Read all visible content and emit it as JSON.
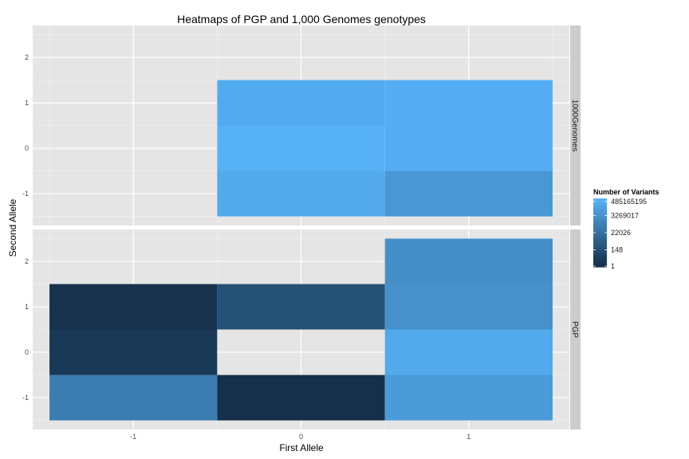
{
  "chart_data": {
    "type": "heatmap",
    "title": "Heatmaps of PGP and 1,000 Genomes genotypes",
    "xlabel": "First Allele",
    "ylabel": "Second Allele",
    "x_ticks": [
      -1,
      0,
      1
    ],
    "y_ticks": [
      -1,
      0,
      1,
      2
    ],
    "xlim": [
      -1.5,
      1.5
    ],
    "ylim": [
      -1.5,
      2.5
    ],
    "grid": true,
    "legend": {
      "title": "Number of Variants",
      "position": "right",
      "scale": "log",
      "breaks": [
        {
          "label": "485165195",
          "value": 485165195
        },
        {
          "label": "3269017",
          "value": 3269017
        },
        {
          "label": "22026",
          "value": 22026
        },
        {
          "label": "148",
          "value": 148
        },
        {
          "label": "1",
          "value": 1
        }
      ],
      "color_low": "#132B43",
      "color_high": "#56B1F7"
    },
    "panels": [
      {
        "name": "1000Genomes",
        "cells": [
          {
            "x": 0,
            "y": 1,
            "value": 200000000
          },
          {
            "x": 1,
            "y": 1,
            "value": 320000000
          },
          {
            "x": 0,
            "y": 0,
            "value": 485165195
          },
          {
            "x": 1,
            "y": 0,
            "value": 250000000
          },
          {
            "x": 0,
            "y": -1,
            "value": 150000000
          },
          {
            "x": 1,
            "y": -1,
            "value": 10000000
          }
        ]
      },
      {
        "name": "PGP",
        "cells": [
          {
            "x": 1,
            "y": 2,
            "value": 3000000
          },
          {
            "x": -1,
            "y": 1,
            "value": 3
          },
          {
            "x": 0,
            "y": 1,
            "value": 300
          },
          {
            "x": 1,
            "y": 1,
            "value": 4000000
          },
          {
            "x": -1,
            "y": 0,
            "value": 8
          },
          {
            "x": 1,
            "y": 0,
            "value": 150000000
          },
          {
            "x": -1,
            "y": -1,
            "value": 200000
          },
          {
            "x": 0,
            "y": -1,
            "value": 2
          },
          {
            "x": 1,
            "y": -1,
            "value": 15000000
          }
        ]
      }
    ]
  }
}
